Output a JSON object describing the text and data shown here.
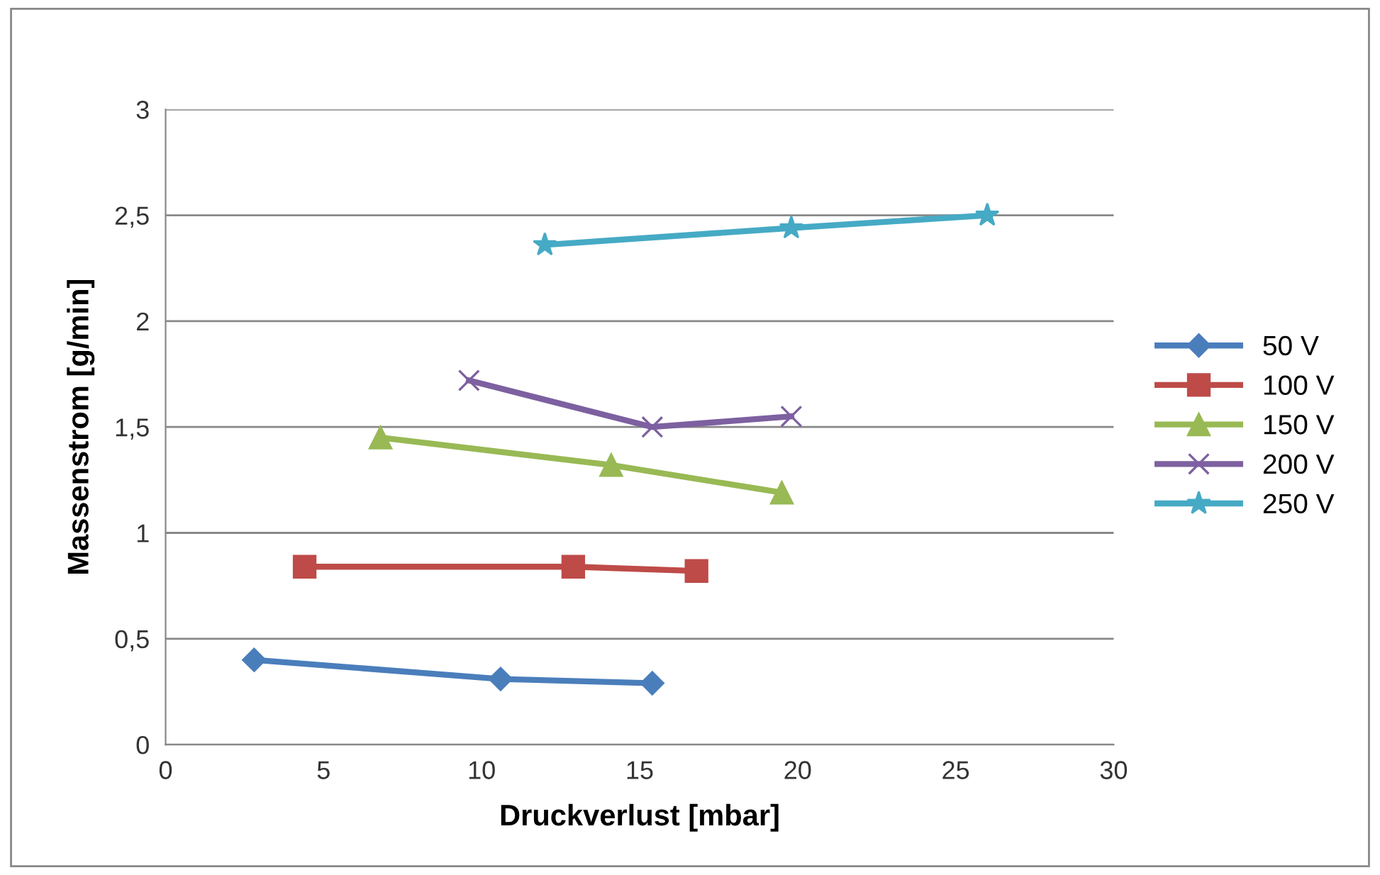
{
  "chart_data": {
    "type": "line",
    "xlabel": "Druckverlust [mbar]",
    "ylabel": "Massenstrom [g/min]",
    "xlim": [
      0,
      30
    ],
    "xticks": [
      0,
      5,
      10,
      15,
      20,
      25,
      30
    ],
    "ylim": [
      0,
      3
    ],
    "yticks": [
      0,
      {
        "value": 0.5,
        "label": "0,5"
      },
      1,
      {
        "value": 1.5,
        "label": "1,5"
      },
      2,
      {
        "value": 2.5,
        "label": "2,5"
      },
      3
    ],
    "grid": "y",
    "legend": "right",
    "series": [
      {
        "name": "50 V",
        "color": "#4a7ebb",
        "marker": "diamond",
        "x": [
          2.8,
          10.6,
          15.4
        ],
        "values": [
          0.4,
          0.31,
          0.29
        ]
      },
      {
        "name": "100 V",
        "color": "#be4b48",
        "marker": "square",
        "x": [
          4.4,
          12.9,
          16.8
        ],
        "values": [
          0.84,
          0.84,
          0.82
        ]
      },
      {
        "name": "150 V",
        "color": "#98b954",
        "marker": "triangle",
        "x": [
          6.8,
          14.1,
          19.5
        ],
        "values": [
          1.45,
          1.32,
          1.19
        ]
      },
      {
        "name": "200 V",
        "color": "#7d60a0",
        "marker": "cross",
        "x": [
          9.6,
          15.4,
          19.8
        ],
        "values": [
          1.72,
          1.5,
          1.55
        ]
      },
      {
        "name": "250 V",
        "color": "#46aac5",
        "marker": "star",
        "x": [
          12.0,
          19.8,
          26.0
        ],
        "values": [
          2.36,
          2.44,
          2.5
        ]
      }
    ]
  }
}
